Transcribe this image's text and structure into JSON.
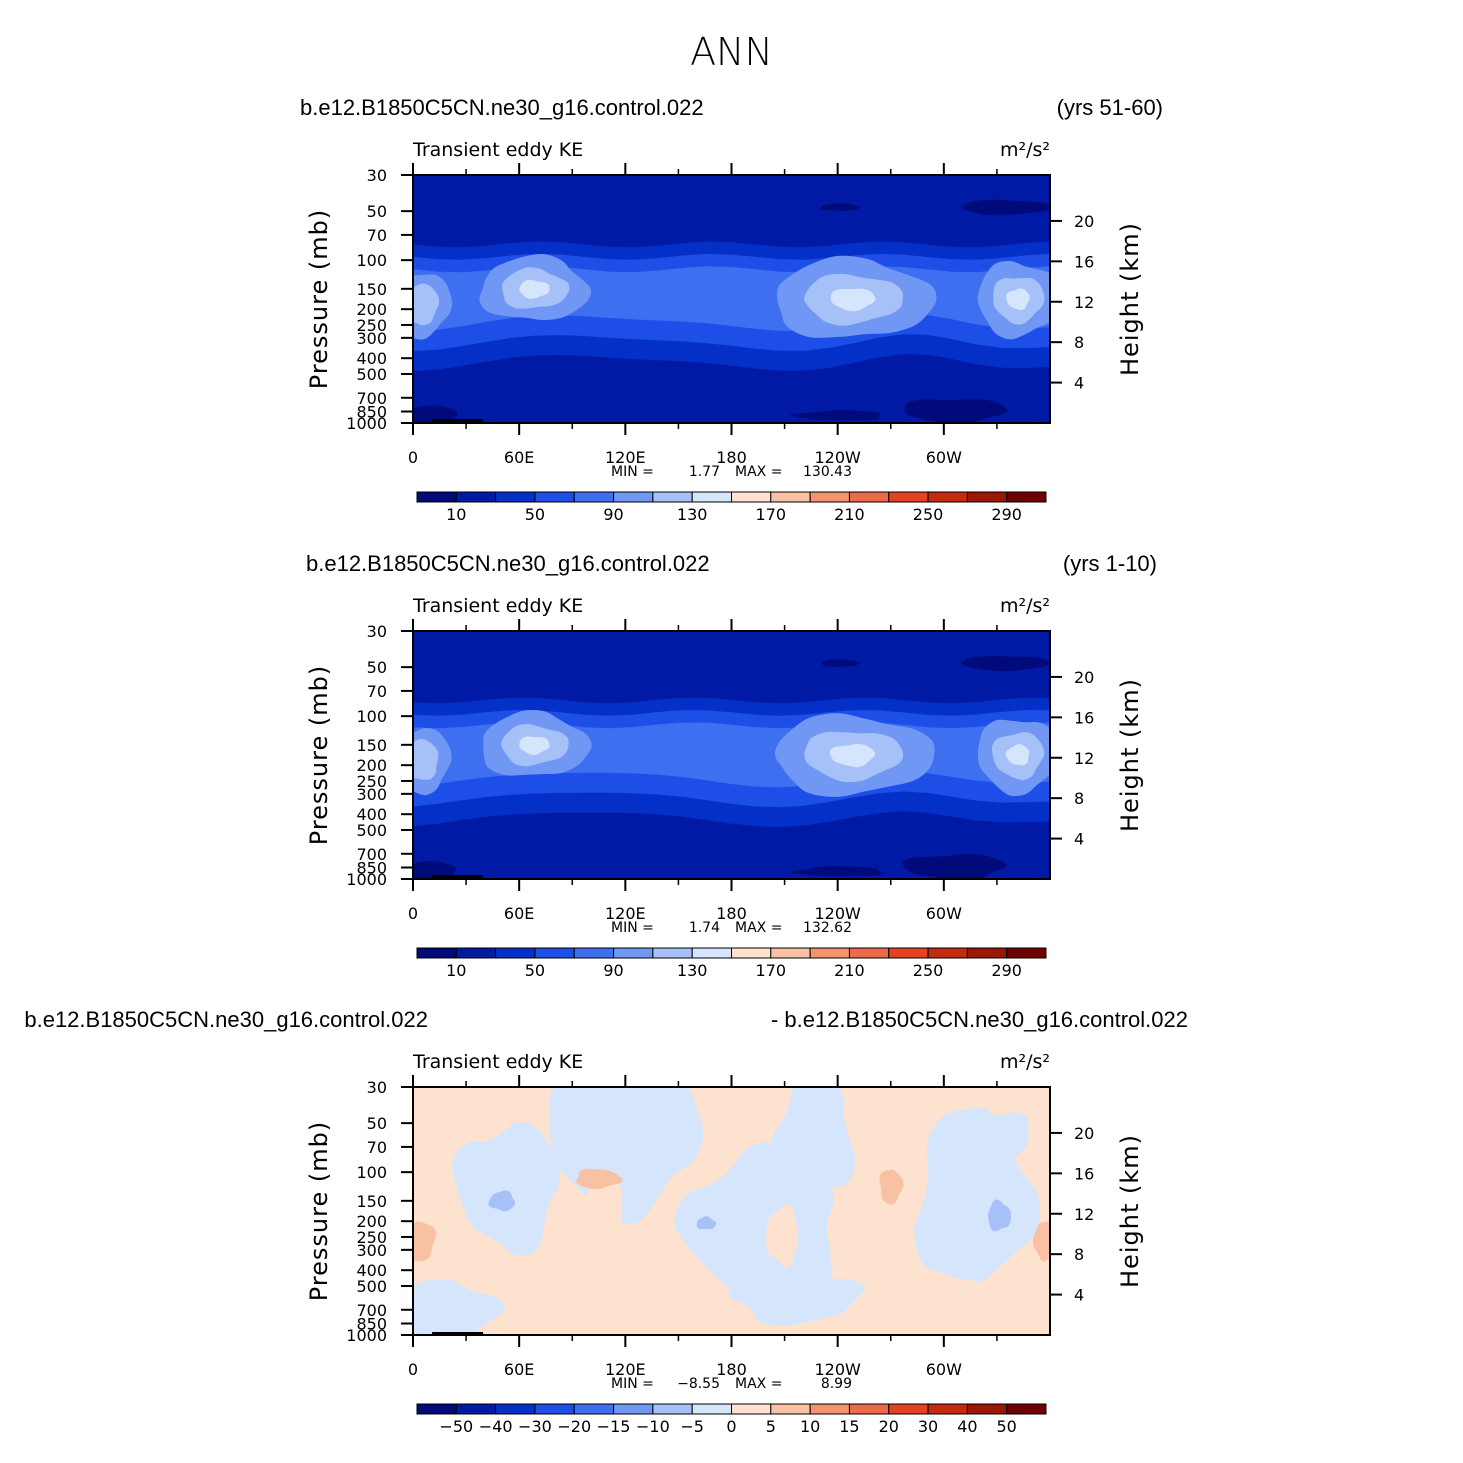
{
  "page": {
    "title": "ANN"
  },
  "chart_data": [
    {
      "type": "heatmap",
      "title_left": "b.e12.B1850C5CN.ne30_g16.control.022",
      "title_right": "(yrs 51-60)",
      "field_name": "Transient eddy KE",
      "units": "m²/s²",
      "ylabel": "Pressure (mb)",
      "ylabel_right": "Height (km)",
      "x_ticks": [
        "0",
        "60E",
        "120E",
        "180",
        "120W",
        "60W"
      ],
      "y_ticks": [
        "30",
        "50",
        "70",
        "100",
        "150",
        "200",
        "250",
        "300",
        "400",
        "500",
        "700",
        "850",
        "1000"
      ],
      "y_ticks_right": [
        "20",
        "16",
        "12",
        "8",
        "4"
      ],
      "stats": {
        "min_label": "MIN =",
        "min": "1.77",
        "max_label": "MAX =",
        "max": "130.43"
      },
      "colorbar": {
        "labels": [
          "10",
          "50",
          "90",
          "130",
          "170",
          "210",
          "250",
          "290"
        ],
        "colors": [
          "#000a7a",
          "#001aa6",
          "#0530c8",
          "#1d4ee8",
          "#3d6ff0",
          "#6f97f3",
          "#a6c1f7",
          "#d5e5fb",
          "#fde3cf",
          "#f9c1a3",
          "#f5936e",
          "#ee6a46",
          "#e5431f",
          "#c42a0c",
          "#9c1505",
          "#700000"
        ]
      }
    },
    {
      "type": "heatmap",
      "title_left": "b.e12.B1850C5CN.ne30_g16.control.022",
      "title_right": "(yrs 1-10)",
      "field_name": "Transient eddy KE",
      "units": "m²/s²",
      "ylabel": "Pressure (mb)",
      "ylabel_right": "Height (km)",
      "x_ticks": [
        "0",
        "60E",
        "120E",
        "180",
        "120W",
        "60W"
      ],
      "y_ticks": [
        "30",
        "50",
        "70",
        "100",
        "150",
        "200",
        "250",
        "300",
        "400",
        "500",
        "700",
        "850",
        "1000"
      ],
      "y_ticks_right": [
        "20",
        "16",
        "12",
        "8",
        "4"
      ],
      "stats": {
        "min_label": "MIN =",
        "min": "1.74",
        "max_label": "MAX =",
        "max": "132.62"
      },
      "colorbar": {
        "labels": [
          "10",
          "50",
          "90",
          "130",
          "170",
          "210",
          "250",
          "290"
        ],
        "colors": [
          "#000a7a",
          "#001aa6",
          "#0530c8",
          "#1d4ee8",
          "#3d6ff0",
          "#6f97f3",
          "#a6c1f7",
          "#d5e5fb",
          "#fde3cf",
          "#f9c1a3",
          "#f5936e",
          "#ee6a46",
          "#e5431f",
          "#c42a0c",
          "#9c1505",
          "#700000"
        ]
      }
    },
    {
      "type": "heatmap",
      "title_left": "b.e12.B1850C5CN.ne30_g16.control.022",
      "title_right": "- b.e12.B1850C5CN.ne30_g16.control.022",
      "field_name": "Transient eddy KE",
      "units": "m²/s²",
      "ylabel": "Pressure (mb)",
      "ylabel_right": "Height (km)",
      "x_ticks": [
        "0",
        "60E",
        "120E",
        "180",
        "120W",
        "60W"
      ],
      "y_ticks": [
        "30",
        "50",
        "70",
        "100",
        "150",
        "200",
        "250",
        "300",
        "400",
        "500",
        "700",
        "850",
        "1000"
      ],
      "y_ticks_right": [
        "20",
        "16",
        "12",
        "8",
        "4"
      ],
      "stats": {
        "min_label": "MIN =",
        "min": "−8.55",
        "max_label": "MAX =",
        "max": "8.99"
      },
      "colorbar": {
        "labels": [
          "−50",
          "−40",
          "−30",
          "−20",
          "−15",
          "−10",
          "−5",
          "0",
          "5",
          "10",
          "15",
          "20",
          "30",
          "40",
          "50"
        ],
        "colors": [
          "#000a7a",
          "#001aa6",
          "#0530c8",
          "#1d4ee8",
          "#3d6ff0",
          "#6f97f3",
          "#a6c1f7",
          "#d5e5fb",
          "#fde3cf",
          "#f9c1a3",
          "#f5936e",
          "#ee6a46",
          "#e5431f",
          "#c42a0c",
          "#9c1505",
          "#700000"
        ]
      }
    }
  ]
}
